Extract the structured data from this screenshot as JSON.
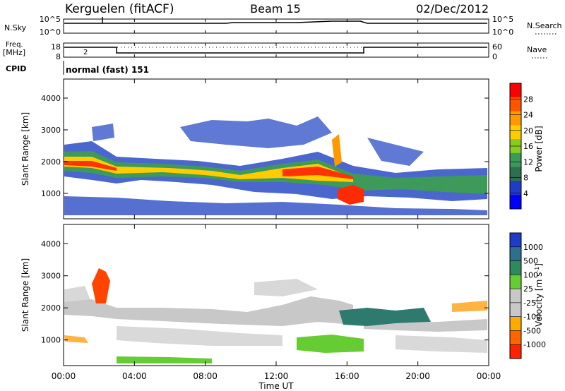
{
  "header": {
    "station": "Kerguelen (fitACF)",
    "beam": "Beam 15",
    "date": "02/Dec/2012"
  },
  "strips": {
    "nsky_label": "N.Sky",
    "nsearch_label": "N.Search",
    "freq_label_1": "Freq.",
    "freq_label_2": "[MHz]",
    "nave_label": "Nave",
    "cpid_label": "CPID",
    "cpid_text": "normal (fast) 151",
    "nsky_ticks": [
      "10^5",
      "10^0"
    ],
    "nsearch_ticks": [
      "10^5",
      "10^0"
    ],
    "freq_ticks": [
      "18",
      "8"
    ],
    "nave_ticks": [
      "60",
      "0"
    ],
    "freq_marker": "2"
  },
  "chart_data": [
    {
      "type": "heatmap",
      "name_tag": "power",
      "ylabel": "Slant Range [km]",
      "yticks": [
        1000,
        2000,
        3000,
        4000
      ],
      "ylim": [
        200,
        4600
      ],
      "xlim": [
        0,
        24
      ],
      "colorbar": {
        "label": "Power [dB]",
        "ticks": [
          "28",
          "24",
          "20",
          "16",
          "12",
          "8",
          "4"
        ],
        "colors": [
          "#ff0000",
          "#ff5500",
          "#ff9900",
          "#ffcc00",
          "#88cc22",
          "#3a9a5a",
          "#2e6f4e",
          "#1e3cc8",
          "#0000ff"
        ]
      }
    },
    {
      "type": "heatmap",
      "name_tag": "velocity",
      "ylabel": "Slant Range [km]",
      "yticks": [
        1000,
        2000,
        3000,
        4000
      ],
      "ylim": [
        200,
        4600
      ],
      "xlim": [
        0,
        24
      ],
      "colorbar": {
        "label": "Velocity [m s",
        "label_sup": "-1",
        "label_end": "]",
        "ticks": [
          "1000",
          "500",
          "100",
          "25",
          "-25",
          "-100",
          "-500",
          "-1000"
        ],
        "colors": [
          "#1e3cc8",
          "#2e6f8e",
          "#2e8a5a",
          "#66cc33",
          "#c8c8c8",
          "#c8c8c8",
          "#ffaa00",
          "#ff6600",
          "#ff2200"
        ]
      }
    }
  ],
  "xaxis": {
    "ticks": [
      "00:00",
      "04:00",
      "08:00",
      "12:00",
      "16:00",
      "20:00",
      "00:00"
    ],
    "label": "Time UT"
  }
}
